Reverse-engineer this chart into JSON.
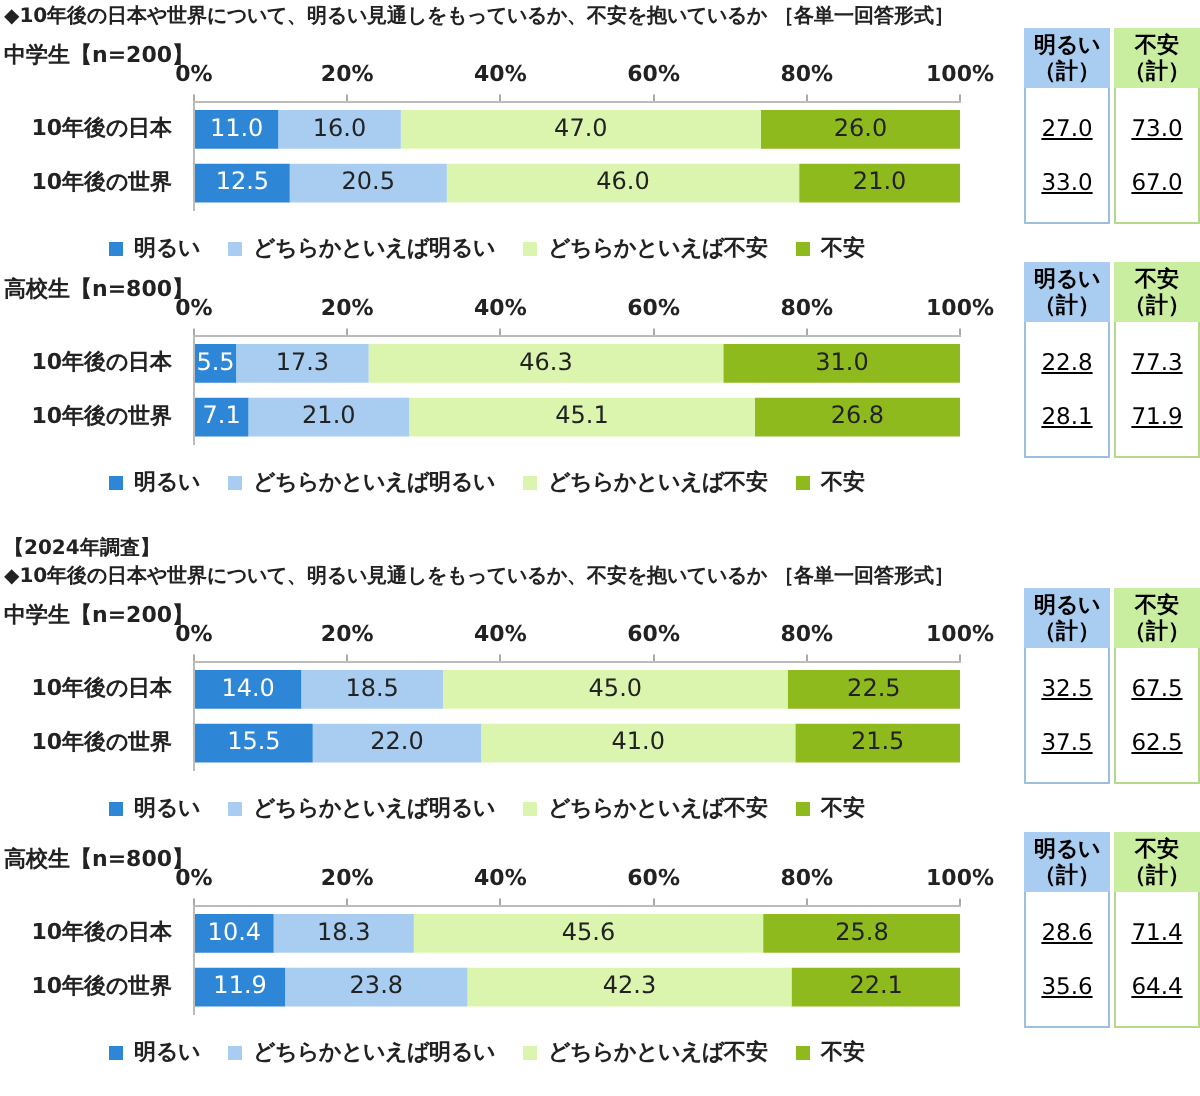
{
  "chart_data": [
    {
      "type": "bar",
      "orientation": "horizontal",
      "stacked": true,
      "title": "◆10年後の日本や世界について、明るい見通しをもっているか、不安を抱いているか ［各単一回答形式］",
      "subtitle": "中学生【n=200】",
      "categories": [
        "10年後の日本",
        "10年後の世界"
      ],
      "series": [
        {
          "name": "明るい",
          "color": "#2e86d6",
          "values": [
            11.0,
            12.5
          ],
          "value_labels": [
            "11.0",
            "12.5"
          ]
        },
        {
          "name": "どちらかといえば明るい",
          "color": "#a9cdf0",
          "values": [
            16.0,
            20.5
          ],
          "value_labels": [
            "16.0",
            "20.5"
          ]
        },
        {
          "name": "どちらかといえば不安",
          "color": "#dcf5ae",
          "values": [
            47.0,
            46.0
          ],
          "value_labels": [
            "47.0",
            "46.0"
          ]
        },
        {
          "name": "不安",
          "color": "#8fba1e",
          "values": [
            26.0,
            21.0
          ],
          "value_labels": [
            "26.0",
            "21.0"
          ]
        }
      ],
      "xlim": [
        0,
        100
      ],
      "xticks": [
        {
          "value": 0,
          "label": "0%"
        },
        {
          "value": 20,
          "label": "20%"
        },
        {
          "value": 40,
          "label": "40%"
        },
        {
          "value": 60,
          "label": "60%"
        },
        {
          "value": 80,
          "label": "80%"
        },
        {
          "value": 100,
          "label": "100%"
        }
      ],
      "legend": "bottom",
      "grid": false,
      "annotations": [
        "明るい（計）",
        "不安（計）",
        "27.0",
        "73.0",
        "33.0",
        "67.0"
      ]
    },
    {
      "type": "bar",
      "orientation": "horizontal",
      "stacked": true,
      "subtitle": "高校生【n=800】",
      "categories": [
        "10年後の日本",
        "10年後の世界"
      ],
      "series": [
        {
          "name": "明るい",
          "color": "#2e86d6",
          "values": [
            5.5,
            7.1
          ],
          "value_labels": [
            "5.5",
            "7.1"
          ]
        },
        {
          "name": "どちらかといえば明るい",
          "color": "#a9cdf0",
          "values": [
            17.3,
            21.0
          ],
          "value_labels": [
            "17.3",
            "21.0"
          ]
        },
        {
          "name": "どちらかといえば不安",
          "color": "#dcf5ae",
          "values": [
            46.3,
            45.1
          ],
          "value_labels": [
            "46.3",
            "45.1"
          ]
        },
        {
          "name": "不安",
          "color": "#8fba1e",
          "values": [
            31.0,
            26.8
          ],
          "value_labels": [
            "31.0",
            "26.8"
          ]
        }
      ],
      "xlim": [
        0,
        100
      ],
      "xticks": [
        {
          "value": 0,
          "label": "0%"
        },
        {
          "value": 20,
          "label": "20%"
        },
        {
          "value": 40,
          "label": "40%"
        },
        {
          "value": 60,
          "label": "60%"
        },
        {
          "value": 80,
          "label": "80%"
        },
        {
          "value": 100,
          "label": "100%"
        }
      ],
      "legend": "bottom",
      "grid": false,
      "annotations": [
        "明るい（計）",
        "不安（計）",
        "22.8",
        "77.3",
        "28.1",
        "71.9"
      ]
    },
    {
      "type": "bar",
      "orientation": "horizontal",
      "stacked": true,
      "title": "【2024年調査】\n◆10年後の日本や世界について、明るい見通しをもっているか、不安を抱いているか ［各単一回答形式］",
      "subtitle": "中学生【n=200】",
      "categories": [
        "10年後の日本",
        "10年後の世界"
      ],
      "series": [
        {
          "name": "明るい",
          "color": "#2e86d6",
          "values": [
            14.0,
            15.5
          ],
          "value_labels": [
            "14.0",
            "15.5"
          ]
        },
        {
          "name": "どちらかといえば明るい",
          "color": "#a9cdf0",
          "values": [
            18.5,
            22.0
          ],
          "value_labels": [
            "18.5",
            "22.0"
          ]
        },
        {
          "name": "どちらかといえば不安",
          "color": "#dcf5ae",
          "values": [
            45.0,
            41.0
          ],
          "value_labels": [
            "45.0",
            "41.0"
          ]
        },
        {
          "name": "不安",
          "color": "#8fba1e",
          "values": [
            22.5,
            21.5
          ],
          "value_labels": [
            "22.5",
            "21.5"
          ]
        }
      ],
      "xlim": [
        0,
        100
      ],
      "xticks": [
        {
          "value": 0,
          "label": "0%"
        },
        {
          "value": 20,
          "label": "20%"
        },
        {
          "value": 40,
          "label": "40%"
        },
        {
          "value": 60,
          "label": "60%"
        },
        {
          "value": 80,
          "label": "80%"
        },
        {
          "value": 100,
          "label": "100%"
        }
      ],
      "legend": "bottom",
      "grid": false,
      "annotations": [
        "明るい（計）",
        "不安（計）",
        "32.5",
        "67.5",
        "37.5",
        "62.5"
      ]
    },
    {
      "type": "bar",
      "orientation": "horizontal",
      "stacked": true,
      "subtitle": "高校生【n=800】",
      "categories": [
        "10年後の日本",
        "10年後の世界"
      ],
      "series": [
        {
          "name": "明るい",
          "color": "#2e86d6",
          "values": [
            10.4,
            11.9
          ],
          "value_labels": [
            "10.4",
            "11.9"
          ]
        },
        {
          "name": "どちらかといえば明るい",
          "color": "#a9cdf0",
          "values": [
            18.3,
            23.8
          ],
          "value_labels": [
            "18.3",
            "23.8"
          ]
        },
        {
          "name": "どちらかといえば不安",
          "color": "#dcf5ae",
          "values": [
            45.6,
            42.3
          ],
          "value_labels": [
            "45.6",
            "42.3"
          ]
        },
        {
          "name": "不安",
          "color": "#8fba1e",
          "values": [
            25.8,
            22.1
          ],
          "value_labels": [
            "25.8",
            "22.1"
          ]
        }
      ],
      "xlim": [
        0,
        100
      ],
      "xticks": [
        {
          "value": 0,
          "label": "0%"
        },
        {
          "value": 20,
          "label": "20%"
        },
        {
          "value": 40,
          "label": "40%"
        },
        {
          "value": 60,
          "label": "60%"
        },
        {
          "value": 80,
          "label": "80%"
        },
        {
          "value": 100,
          "label": "100%"
        }
      ],
      "legend": "bottom",
      "grid": false,
      "annotations": [
        "明るい（計）",
        "不安（計）",
        "28.6",
        "71.4",
        "35.6",
        "64.4"
      ]
    }
  ]
}
